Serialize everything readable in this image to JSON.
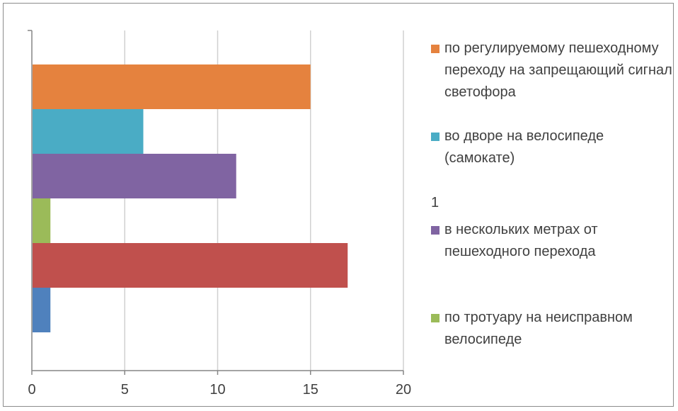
{
  "chart_data": {
    "type": "bar",
    "orientation": "horizontal",
    "title": "",
    "xlabel": "",
    "ylabel": "",
    "xlim": [
      0,
      20
    ],
    "x_ticks": [
      "0",
      "5",
      "10",
      "15",
      "20"
    ],
    "grid": true,
    "legend_position": "right",
    "bars": [
      {
        "value": 15,
        "color": "#e5823e"
      },
      {
        "value": 6,
        "color": "#4aacc5"
      },
      {
        "value": 11,
        "color": "#8064a2"
      },
      {
        "value": 1,
        "color": "#9bbb59"
      },
      {
        "value": 17,
        "color": "#c0504d"
      },
      {
        "value": 1,
        "color": "#4f81bd"
      }
    ],
    "legend": [
      {
        "label": "по регулируемому пешеходному переходу на запрещающий сигнал светофора",
        "color": "#e5823e"
      },
      {
        "label": "во дворе на велосипеде (самокате)",
        "color": "#4aacc5"
      },
      {
        "label": "1",
        "color": ""
      },
      {
        "label": "в нескольких метрах от пешеходного перехода",
        "color": "#8064a2"
      },
      {
        "label": "по тротуару на неисправном велосипеде",
        "color": "#9bbb59"
      }
    ]
  }
}
